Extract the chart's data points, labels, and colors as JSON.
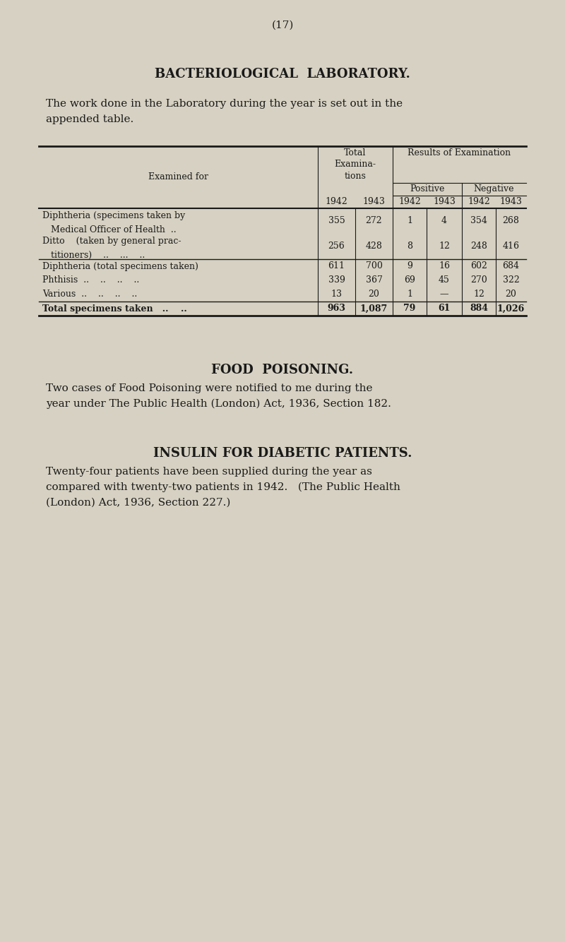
{
  "page_number": "(17)",
  "background_color": "#d6d1c2",
  "text_color": "#1a1a1a",
  "title1": "BACTERIOLOGICAL  LABORATORY.",
  "intro_line1": "The work done in the Laboratory during the year is set out in the",
  "intro_line2": "appended table.",
  "table": {
    "rows": [
      {
        "label_lines": [
          "Diphtheria (specimens taken by",
          "   Medical Officer of Health  .."
        ],
        "data": [
          "355",
          "272",
          "1",
          "4",
          "354",
          "268"
        ],
        "separator_above": false
      },
      {
        "label_lines": [
          "Ditto    (taken by general prac-",
          "   titioners)    ..    ...    .."
        ],
        "data": [
          "256",
          "428",
          "8",
          "12",
          "248",
          "416"
        ],
        "separator_above": false
      },
      {
        "label_lines": [
          "Diphtheria (total specimens taken)"
        ],
        "data": [
          "611",
          "700",
          "9",
          "16",
          "602",
          "684"
        ],
        "separator_above": true
      },
      {
        "label_lines": [
          "Phthisis  ..    ..    ..    .."
        ],
        "data": [
          "339",
          "367",
          "69",
          "45",
          "270",
          "322"
        ],
        "separator_above": false
      },
      {
        "label_lines": [
          "Various  ..    ..    ..    .."
        ],
        "data": [
          "13",
          "20",
          "1",
          "—",
          "12",
          "20"
        ],
        "separator_above": false
      },
      {
        "label_lines": [
          "Total specimens taken   ..    .."
        ],
        "data": [
          "963",
          "1,087",
          "79",
          "61",
          "884",
          "1,026"
        ],
        "separator_above": true,
        "bold": true
      }
    ]
  },
  "section2_title": "FOOD  POISONING.",
  "section2_text_line1": "Two cases of Food Poisoning were notified to me during the",
  "section2_text_line2": "year under The Public Health (London) Act, 1936, Section 182.",
  "section3_title": "INSULIN FOR DIABETIC PATIENTS.",
  "section3_text_line1": "Twenty-four patients have been supplied during the year as",
  "section3_text_line2": "compared with twenty-two patients in 1942.   (The Public Health",
  "section3_text_line3": "(London) Act, 1936, Section 227.)"
}
